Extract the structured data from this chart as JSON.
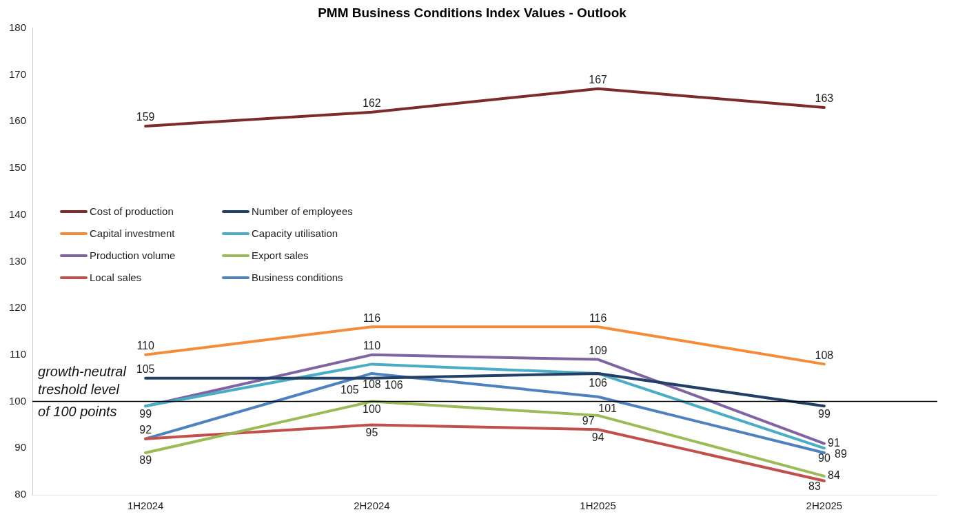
{
  "chart_data": {
    "type": "line",
    "title": "PMM Business Conditions Index Values - Outlook",
    "categories": [
      "1H2024",
      "2H2024",
      "1H2025",
      "2H2025"
    ],
    "series": [
      {
        "name": "Cost of production",
        "color": "#7b2b2b",
        "values": [
          159,
          162,
          167,
          163
        ],
        "value_labels": [
          "159",
          "162",
          "167",
          "163"
        ]
      },
      {
        "name": "Number of employees",
        "color": "#243f66",
        "values": [
          105,
          105,
          106,
          99
        ],
        "value_labels": [
          "105",
          "105",
          "106",
          "99"
        ]
      },
      {
        "name": "Capital investment",
        "color": "#f38d3c",
        "values": [
          110,
          116,
          116,
          108
        ],
        "value_labels": [
          "110",
          "116",
          "116",
          "108"
        ]
      },
      {
        "name": "Capacity utilisation",
        "color": "#4bacc6",
        "values": [
          99,
          108,
          106,
          90
        ],
        "value_labels": [
          null,
          "108",
          null,
          "90"
        ]
      },
      {
        "name": "Production volume",
        "color": "#8064a2",
        "values": [
          99,
          110,
          109,
          91
        ],
        "value_labels": [
          "99",
          "110",
          "109",
          "91"
        ]
      },
      {
        "name": "Export sales",
        "color": "#9bbb59",
        "values": [
          89,
          100,
          97,
          84
        ],
        "value_labels": [
          "89",
          "100",
          "97",
          "84"
        ]
      },
      {
        "name": "Local sales",
        "color": "#c0504d",
        "values": [
          92,
          95,
          94,
          83
        ],
        "value_labels": [
          "92",
          "95",
          "94",
          "83"
        ]
      },
      {
        "name": "Business conditions",
        "color": "#4f81bd",
        "values": [
          92,
          106,
          101,
          89
        ],
        "value_labels": [
          null,
          "106",
          "101",
          "89"
        ]
      }
    ],
    "ylim": [
      80,
      180
    ],
    "yticks": [
      80,
      90,
      100,
      110,
      120,
      130,
      140,
      150,
      160,
      170,
      180
    ],
    "ref_lines": [
      {
        "axis": "y",
        "value": 100,
        "label": "growth-neutral treshold level of 100 points",
        "color": "#000000"
      }
    ],
    "grid": false,
    "legend": "left",
    "marker": "none",
    "line_style": "solid"
  }
}
